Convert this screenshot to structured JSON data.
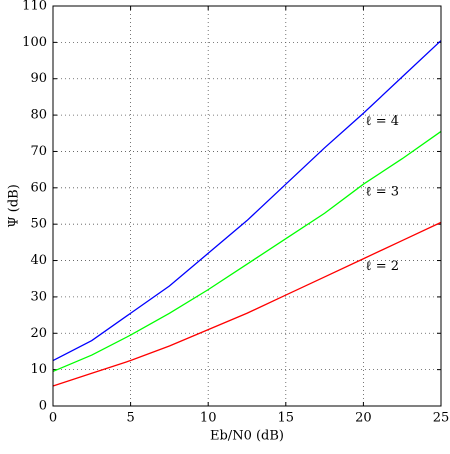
{
  "chart_data": {
    "type": "line",
    "xlabel": "Eb/N0 (dB)",
    "ylabel": "Ψ (dB)",
    "x": [
      0,
      2.5,
      5,
      7.5,
      10,
      12.5,
      15,
      17.5,
      20,
      22.5,
      25
    ],
    "series": [
      {
        "name": "ℓ = 4",
        "color": "#0000ff",
        "values": [
          12.5,
          18,
          25.5,
          33,
          42,
          51,
          61,
          71,
          80.5,
          90.5,
          100.5
        ]
      },
      {
        "name": "ℓ = 3",
        "color": "#00ff00",
        "values": [
          9.5,
          14,
          19.5,
          25.5,
          32,
          39,
          46,
          53,
          61,
          68,
          75.5
        ]
      },
      {
        "name": "ℓ = 2",
        "color": "#ff0000",
        "values": [
          5.5,
          9,
          12.5,
          16.5,
          21,
          25.5,
          30.5,
          35.5,
          40.5,
          45.5,
          50.5
        ]
      }
    ],
    "xlim": [
      0,
      25
    ],
    "xticks": [
      0,
      5,
      10,
      15,
      20,
      25
    ],
    "ylim": [
      0,
      110
    ],
    "yticks": [
      0,
      10,
      20,
      30,
      40,
      50,
      60,
      70,
      80,
      90,
      100,
      110
    ],
    "grid": true
  }
}
